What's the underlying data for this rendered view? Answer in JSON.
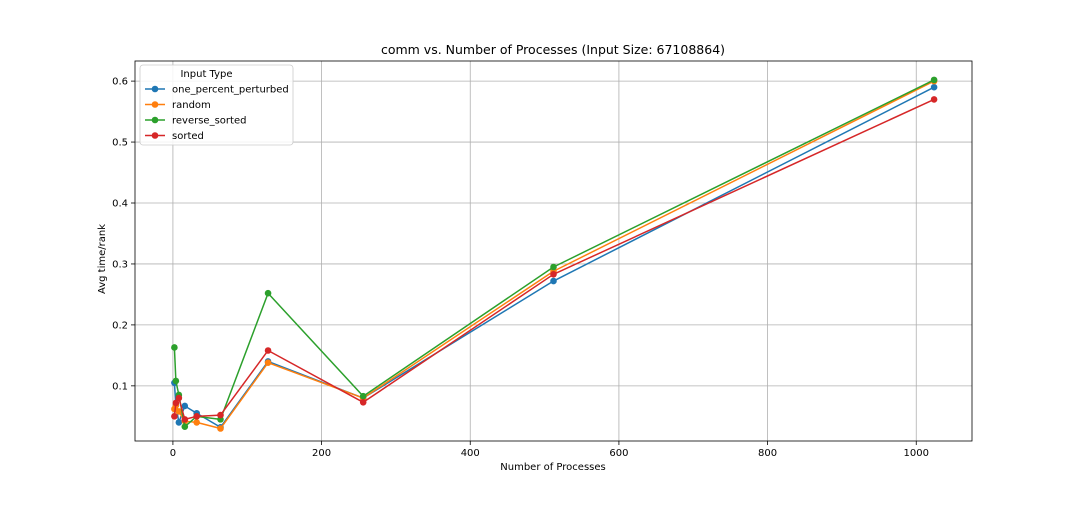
{
  "colors": {
    "one_percent_perturbed": "#1f77b4",
    "random": "#ff7f0e",
    "reverse_sorted": "#2ca02c",
    "sorted": "#d62728",
    "grid": "#b0b0b0",
    "axis": "#000000"
  },
  "chart_data": {
    "type": "line",
    "title": "comm vs. Number of Processes (Input Size: 67108864)",
    "xlabel": "Number of Processes",
    "ylabel": "Avg time/rank",
    "xlim": [
      -51,
      1075
    ],
    "ylim": [
      0.0095,
      0.633
    ],
    "xticks": [
      0,
      200,
      400,
      600,
      800,
      1000
    ],
    "yticks": [
      0.1,
      0.2,
      0.3,
      0.4,
      0.5,
      0.6
    ],
    "xtick_labels": [
      "0",
      "200",
      "400",
      "600",
      "800",
      "1000"
    ],
    "ytick_labels": [
      "0.1",
      "0.2",
      "0.3",
      "0.4",
      "0.5",
      "0.6"
    ],
    "grid": true,
    "legend": {
      "title": "Input Type",
      "position": "upper-left"
    },
    "x": [
      2,
      4,
      8,
      16,
      32,
      64,
      128,
      256,
      512,
      1024
    ],
    "series": [
      {
        "name": "one_percent_perturbed",
        "values": [
          0.105,
          0.068,
          0.04,
          0.067,
          0.055,
          0.032,
          0.14,
          0.08,
          0.272,
          0.59
        ]
      },
      {
        "name": "random",
        "values": [
          0.062,
          0.068,
          0.058,
          0.042,
          0.04,
          0.03,
          0.138,
          0.08,
          0.288,
          0.6
        ]
      },
      {
        "name": "reverse_sorted",
        "values": [
          0.163,
          0.108,
          0.085,
          0.033,
          0.05,
          0.045,
          0.252,
          0.083,
          0.295,
          0.602
        ]
      },
      {
        "name": "sorted",
        "values": [
          0.05,
          0.072,
          0.08,
          0.045,
          0.05,
          0.052,
          0.158,
          0.073,
          0.283,
          0.57
        ]
      }
    ]
  }
}
